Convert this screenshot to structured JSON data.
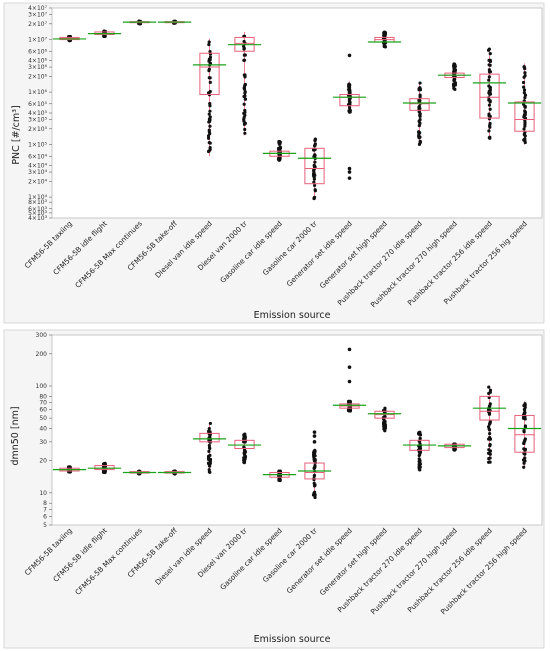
{
  "chart_data": [
    {
      "type": "box",
      "ylabel": "PNC  [#/cm³]",
      "xlabel": "Emission source",
      "yscale": "log",
      "ylim": [
        4000,
        40000000
      ],
      "yticks": [
        {
          "v": 4000,
          "l": "4×10³"
        },
        {
          "v": 5000,
          "l": "5×10³"
        },
        {
          "v": 6000,
          "l": "6×10³"
        },
        {
          "v": 8000,
          "l": "8×10³"
        },
        {
          "v": 10000,
          "l": "1×10⁴"
        },
        {
          "v": 20000,
          "l": "2×10⁴"
        },
        {
          "v": 30000,
          "l": "3×10⁴"
        },
        {
          "v": 40000,
          "l": "4×10⁴"
        },
        {
          "v": 60000,
          "l": "6×10⁴"
        },
        {
          "v": 100000,
          "l": "1×10⁵"
        },
        {
          "v": 200000,
          "l": "2×10⁵"
        },
        {
          "v": 300000,
          "l": "3×10⁵"
        },
        {
          "v": 400000,
          "l": "4×10⁵"
        },
        {
          "v": 600000,
          "l": "6×10⁵"
        },
        {
          "v": 1000000,
          "l": "1×10⁶"
        },
        {
          "v": 2000000,
          "l": "2×10⁶"
        },
        {
          "v": 3000000,
          "l": "3×10⁶"
        },
        {
          "v": 4000000,
          "l": "4×10⁶"
        },
        {
          "v": 6000000,
          "l": "6×10⁶"
        },
        {
          "v": 10000000,
          "l": "1×10⁷"
        },
        {
          "v": 20000000,
          "l": "2×10⁷"
        },
        {
          "v": 30000000,
          "l": "3×10⁷"
        },
        {
          "v": 40000000,
          "l": "4×10⁷"
        }
      ],
      "categories": [
        "CFM56-5B  taxiing",
        "CFM56-5B  idle flight",
        "CFM56-5B  Max continues",
        "CFM56-5B  take-off",
        "Diesel van idle speed",
        "Diesel van 2000 tr",
        "Gasoline car idle speed",
        "Gasoline car 2000 tr",
        "Generator set idle speed",
        "Generator set high speed",
        "Pushback tractor 270 idle speed",
        "Pushback tractor 270 high speed",
        "Pushback tractor 256 idle speed",
        "Pushback tractor 256 hig speed"
      ],
      "boxes": [
        {
          "min": 9500000,
          "q1": 10000000,
          "median": 10500000,
          "q3": 11000000,
          "max": 11500000,
          "mean": 10300000,
          "outliers": []
        },
        {
          "min": 11500000,
          "q1": 12500000,
          "median": 13000000,
          "q3": 14000000,
          "max": 14500000,
          "mean": 13000000,
          "outliers": []
        },
        {
          "min": 20000000,
          "q1": 21000000,
          "median": 21500000,
          "q3": 22000000,
          "max": 22500000,
          "mean": 21500000,
          "outliers": []
        },
        {
          "min": 20500000,
          "q1": 21000000,
          "median": 21500000,
          "q3": 22000000,
          "max": 22500000,
          "mean": 21500000,
          "outliers": []
        },
        {
          "min": 60000,
          "q1": 900000,
          "median": 3000000,
          "q3": 5500000,
          "max": 10500000,
          "mean": 3300000,
          "outliers": []
        },
        {
          "min": 150000,
          "q1": 6000000,
          "median": 8500000,
          "q3": 11000000,
          "max": 14000000,
          "mean": 8000000,
          "outliers": []
        },
        {
          "min": 50000,
          "q1": 60000,
          "median": 68000,
          "q3": 75000,
          "max": 120000,
          "mean": 68000,
          "outliers": []
        },
        {
          "min": 9000,
          "q1": 18000,
          "median": 35000,
          "q3": 85000,
          "max": 130000,
          "mean": 55000,
          "outliers": []
        },
        {
          "min": 400000,
          "q1": 550000,
          "median": 800000,
          "q3": 900000,
          "max": 1600000,
          "mean": 800000,
          "outliers": [
            23000,
            30000,
            35000,
            1000000,
            5000000
          ]
        },
        {
          "min": 7000000,
          "q1": 9000000,
          "median": 10000000,
          "q3": 11000000,
          "max": 14000000,
          "mean": 9000000,
          "outliers": []
        },
        {
          "min": 100000,
          "q1": 450000,
          "median": 600000,
          "q3": 750000,
          "max": 1500000,
          "mean": 620000,
          "outliers": []
        },
        {
          "min": 1100000,
          "q1": 1900000,
          "median": 2100000,
          "q3": 2300000,
          "max": 3500000,
          "mean": 2100000,
          "outliers": []
        },
        {
          "min": 130000,
          "q1": 320000,
          "median": 800000,
          "q3": 2200000,
          "max": 7000000,
          "mean": 1500000,
          "outliers": []
        },
        {
          "min": 100000,
          "q1": 180000,
          "median": 300000,
          "q3": 650000,
          "max": 3500000,
          "mean": 620000,
          "outliers": []
        }
      ]
    },
    {
      "type": "box",
      "ylabel": "dmn50 [nm]",
      "xlabel": "Emission source",
      "yscale": "log",
      "ylim": [
        5,
        300
      ],
      "yticks": [
        {
          "v": 5,
          "l": "5"
        },
        {
          "v": 6,
          "l": "6"
        },
        {
          "v": 7,
          "l": "7"
        },
        {
          "v": 8,
          "l": "8"
        },
        {
          "v": 10,
          "l": "10"
        },
        {
          "v": 20,
          "l": "20"
        },
        {
          "v": 30,
          "l": "30"
        },
        {
          "v": 40,
          "l": "40"
        },
        {
          "v": 50,
          "l": "50"
        },
        {
          "v": 60,
          "l": "60"
        },
        {
          "v": 70,
          "l": "70"
        },
        {
          "v": 80,
          "l": "80"
        },
        {
          "v": 100,
          "l": "100"
        },
        {
          "v": 200,
          "l": "200"
        },
        {
          "v": 300,
          "l": "300"
        }
      ],
      "categories": [
        "CFM56-5B  taxiing",
        "CFM56-5B  idle flight",
        "CFM56-5B  Max continues",
        "CFM56-5B  take-off",
        "Diesel van idle speed",
        "Diesel van 2000 tr",
        "Gasoline car idle speed",
        "Gasoline car 2000 tr",
        "Generator set idle speed",
        "Generator set high speed",
        "Pushback tractor 270 idle speed",
        "Pushback tractor 270 high speed",
        "Pushback tractor 256 idle speed",
        "Pushback tractor 256 high speed"
      ],
      "boxes": [
        {
          "min": 15.5,
          "q1": 16,
          "median": 16.5,
          "q3": 17,
          "max": 17.5,
          "mean": 16.5,
          "outliers": []
        },
        {
          "min": 15.5,
          "q1": 16.5,
          "median": 17,
          "q3": 18,
          "max": 19,
          "mean": 17,
          "outliers": []
        },
        {
          "min": 15,
          "q1": 15.3,
          "median": 15.5,
          "q3": 15.8,
          "max": 16,
          "mean": 15.5,
          "outliers": []
        },
        {
          "min": 15,
          "q1": 15.3,
          "median": 15.5,
          "q3": 15.8,
          "max": 16,
          "mean": 15.5,
          "outliers": []
        },
        {
          "min": 15,
          "q1": 30,
          "median": 32,
          "q3": 36,
          "max": 46,
          "mean": 32,
          "outliers": []
        },
        {
          "min": 19,
          "q1": 26,
          "median": 28,
          "q3": 31,
          "max": 36,
          "mean": 28,
          "outliers": []
        },
        {
          "min": 13,
          "q1": 14,
          "median": 14.8,
          "q3": 15.5,
          "max": 16,
          "mean": 14.8,
          "outliers": []
        },
        {
          "min": 9,
          "q1": 13.5,
          "median": 15.5,
          "q3": 19,
          "max": 25,
          "mean": 16,
          "outliers": [
            30,
            34,
            37
          ]
        },
        {
          "min": 58,
          "q1": 62,
          "median": 65,
          "q3": 68,
          "max": 72,
          "mean": 66,
          "outliers": [
            110,
            150,
            220
          ]
        },
        {
          "min": 38,
          "q1": 50,
          "median": 54,
          "q3": 58,
          "max": 62,
          "mean": 55,
          "outliers": []
        },
        {
          "min": 16,
          "q1": 25,
          "median": 28,
          "q3": 31,
          "max": 38,
          "mean": 28,
          "outliers": []
        },
        {
          "min": 25,
          "q1": 26.5,
          "median": 27.5,
          "q3": 28.5,
          "max": 29,
          "mean": 27.5,
          "outliers": []
        },
        {
          "min": 19,
          "q1": 48,
          "median": 58,
          "q3": 80,
          "max": 100,
          "mean": 62,
          "outliers": []
        },
        {
          "min": 17,
          "q1": 24,
          "median": 35,
          "q3": 53,
          "max": 72,
          "mean": 40,
          "outliers": []
        }
      ]
    }
  ],
  "style": {
    "box_color": "#e8607a",
    "mean_color": "#1aa31a",
    "point_color": "#111111",
    "frame_color": "#bbbbbb",
    "plot_bg": "#ffffff",
    "panel_bg": "#f5f5f5"
  }
}
